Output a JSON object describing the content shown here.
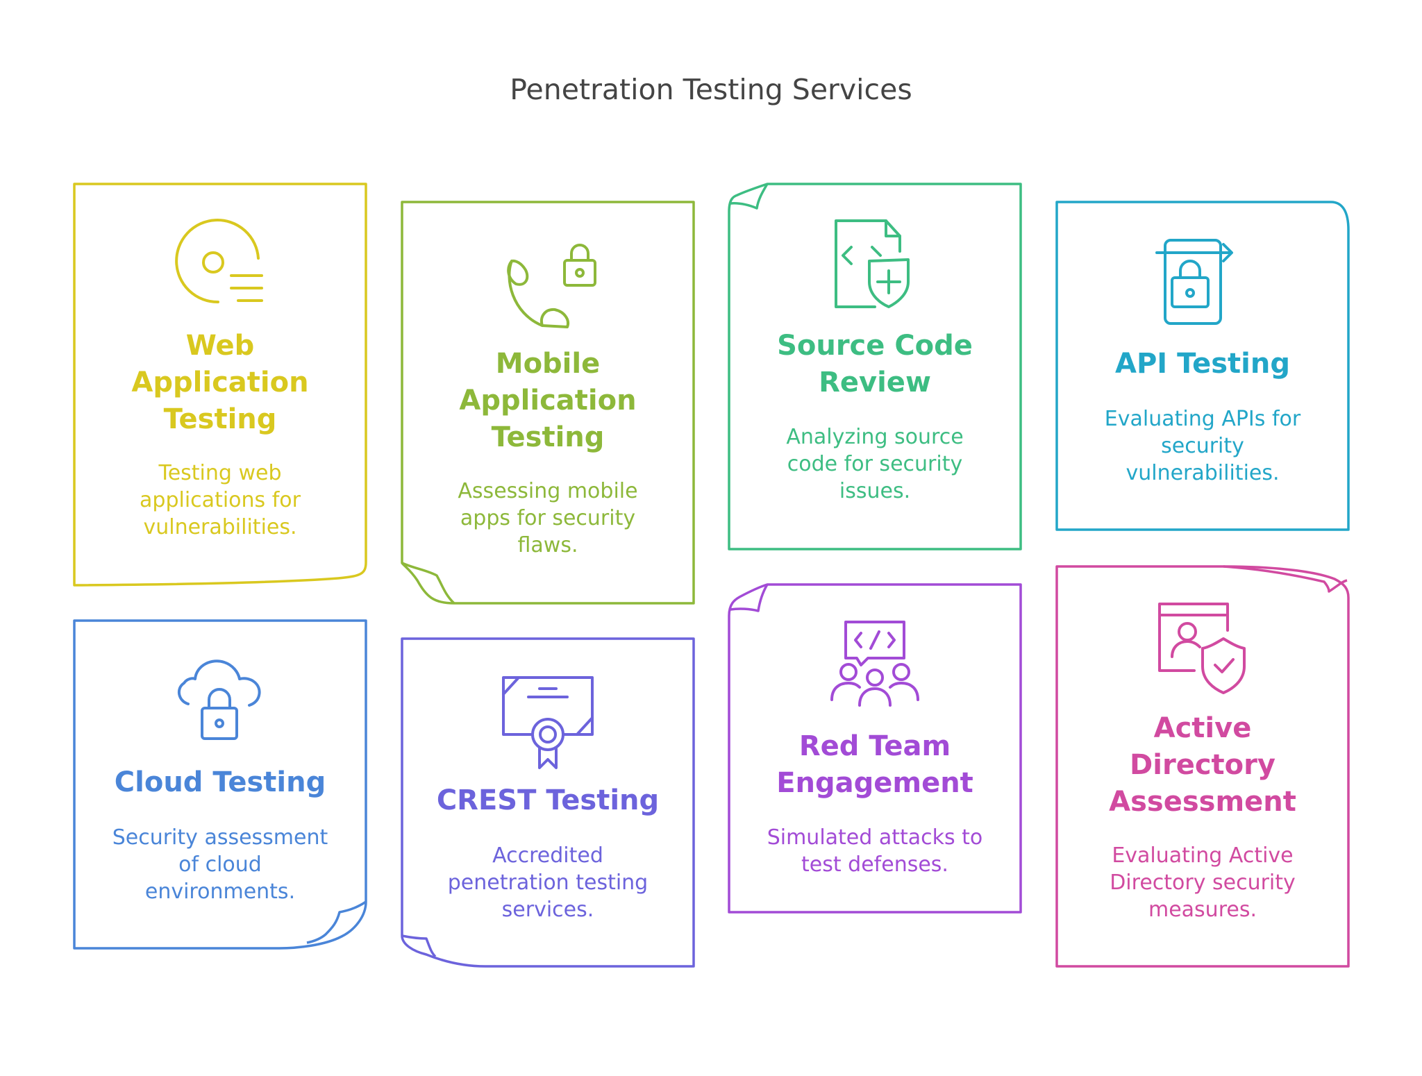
{
  "title": "Penetration Testing Services",
  "cards": [
    {
      "title": "Web Application Testing",
      "title_lines": [
        "Web",
        "Application",
        "Testing"
      ],
      "desc_lines": [
        "Testing web",
        "applications for",
        "vulnerabilities."
      ],
      "color": "#d9c81f",
      "icon": "disc-list-icon"
    },
    {
      "title": "Mobile Application Testing",
      "title_lines": [
        "Mobile",
        "Application",
        "Testing"
      ],
      "desc_lines": [
        "Assessing mobile",
        "apps for security",
        "flaws."
      ],
      "color": "#8db83a",
      "icon": "phone-lock-icon"
    },
    {
      "title": "Source Code Review",
      "title_lines": [
        "Source Code",
        "Review"
      ],
      "desc_lines": [
        "Analyzing source",
        "code for security",
        "issues."
      ],
      "color": "#3dbd82",
      "icon": "code-file-shield-icon"
    },
    {
      "title": "API Testing",
      "title_lines": [
        "API Testing"
      ],
      "desc_lines": [
        "Evaluating APIs for",
        "security",
        "vulnerabilities."
      ],
      "color": "#22a6c8",
      "icon": "door-lock-icon"
    },
    {
      "title": "Cloud Testing",
      "title_lines": [
        "Cloud Testing"
      ],
      "desc_lines": [
        "Security assessment",
        "of cloud",
        "environments."
      ],
      "color": "#4a85d8",
      "icon": "cloud-lock-icon"
    },
    {
      "title": "CREST Testing",
      "title_lines": [
        "CREST Testing"
      ],
      "desc_lines": [
        "Accredited",
        "penetration testing",
        "services."
      ],
      "color": "#6c63dc",
      "icon": "certificate-icon"
    },
    {
      "title": "Red Team Engagement",
      "title_lines": [
        "Red Team",
        "Engagement"
      ],
      "desc_lines": [
        "Simulated attacks to",
        "test defenses."
      ],
      "color": "#a24bd6",
      "icon": "team-code-icon"
    },
    {
      "title": "Active Directory Assessment",
      "title_lines": [
        "Active",
        "Directory",
        "Assessment"
      ],
      "desc_lines": [
        "Evaluating Active",
        "Directory security",
        "measures."
      ],
      "color": "#d14aa0",
      "icon": "user-shield-icon"
    }
  ]
}
